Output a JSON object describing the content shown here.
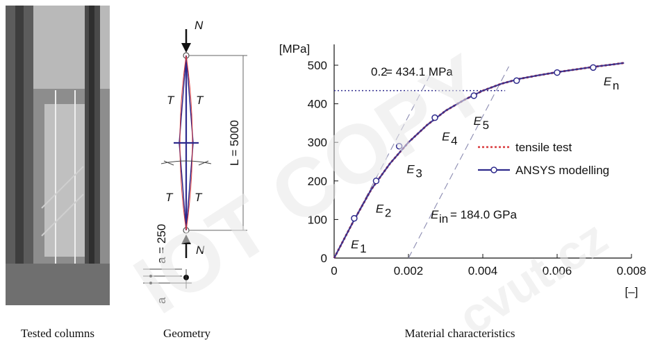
{
  "captions": {
    "left": "Tested columns",
    "middle": "Geometry",
    "right": "Material characteristics"
  },
  "geometry": {
    "force_top": "N",
    "force_bottom": "N",
    "length_label": "L = 5000",
    "a_label": "a = 250",
    "a_small": "a",
    "t_labels": [
      "T",
      "T",
      "T",
      "T"
    ]
  },
  "watermark": {
    "text1": "IOT COPY",
    "text2": "cvut.cz"
  },
  "colors": {
    "tensile": "#d9383a",
    "ansys": "#2e2a8c",
    "photo_bg": "#8d8d8d"
  },
  "chart_data": {
    "type": "line",
    "ylabel": "[MPa]",
    "xlabel": "[–]",
    "xlim": [
      0,
      0.008
    ],
    "ylim": [
      0,
      500
    ],
    "x_ticks": [
      {
        "v": 0,
        "label": "0"
      },
      {
        "v": 0.002,
        "label": "0.002"
      },
      {
        "v": 0.004,
        "label": "0.004"
      },
      {
        "v": 0.006,
        "label": "0.006"
      },
      {
        "v": 0.008,
        "label": "0.008"
      }
    ],
    "y_ticks": [
      {
        "v": 0,
        "label": "0"
      },
      {
        "v": 100,
        "label": "100"
      },
      {
        "v": 200,
        "label": "200"
      },
      {
        "v": 300,
        "label": "300"
      },
      {
        "v": 400,
        "label": "400"
      },
      {
        "v": 500,
        "label": "500"
      }
    ],
    "series": [
      {
        "name": "tensile test",
        "style": "dotted",
        "x": [
          0,
          0.0005,
          0.001,
          0.0015,
          0.002,
          0.0025,
          0.003,
          0.0035,
          0.004,
          0.0045,
          0.005,
          0.0055,
          0.006,
          0.0065,
          0.007,
          0.0075,
          0.0078
        ],
        "y": [
          0,
          92,
          178,
          245,
          300,
          345,
          382,
          410,
          434,
          452,
          465,
          474,
          482,
          489,
          496,
          502,
          506
        ]
      },
      {
        "name": "ANSYS modelling",
        "style": "solid-markers",
        "x": [
          0,
          0.0005,
          0.001,
          0.0015,
          0.002,
          0.0025,
          0.003,
          0.0035,
          0.004,
          0.0045,
          0.005,
          0.0055,
          0.006,
          0.0065,
          0.007,
          0.0075,
          0.0078
        ],
        "y": [
          0,
          92,
          178,
          245,
          300,
          345,
          382,
          410,
          434,
          452,
          465,
          474,
          482,
          489,
          496,
          502,
          506
        ],
        "markers_x": [
          0.00054,
          0.00113,
          0.00175,
          0.00271,
          0.00376,
          0.00491,
          0.006,
          0.00697
        ],
        "markers_y": [
          103,
          200,
          290,
          364,
          421,
          460,
          481,
          494
        ]
      }
    ],
    "reference_lines": {
      "yield_y": 434.1,
      "modulus_lines": [
        {
          "x0": 0,
          "x1": 0.0026
        },
        {
          "x0": 0.002,
          "x1": 0.0047
        }
      ]
    },
    "annotations": {
      "yield_prefix": "0.2",
      "yield_text": "= 434.1 MPa",
      "modulus_base": "E",
      "modulus_sub": "in",
      "modulus_text": "= 184.0 GPa",
      "tangent_labels": [
        {
          "base": "E",
          "sub": "1",
          "x": 0.00045,
          "y": 25
        },
        {
          "base": "E",
          "sub": "2",
          "x": 0.00112,
          "y": 118
        },
        {
          "base": "E",
          "sub": "3",
          "x": 0.00195,
          "y": 220
        },
        {
          "base": "E",
          "sub": "4",
          "x": 0.0029,
          "y": 305
        },
        {
          "base": "E",
          "sub": "5",
          "x": 0.00375,
          "y": 345
        },
        {
          "base": "E",
          "sub": "n",
          "x": 0.00725,
          "y": 448
        }
      ]
    },
    "legend": {
      "placement": "right",
      "entries": [
        "tensile test",
        "ANSYS modelling"
      ]
    }
  }
}
